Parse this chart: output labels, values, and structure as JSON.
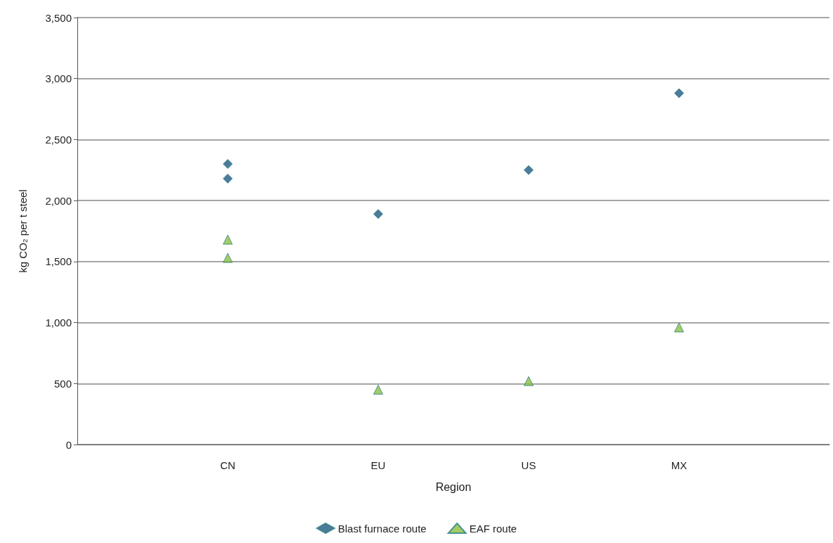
{
  "chart_data": {
    "type": "scatter",
    "xlabel": "Region",
    "ylabel": "kg CO₂ per t steel",
    "categories": [
      null,
      "CN",
      "EU",
      "US",
      "MX",
      null
    ],
    "series": [
      {
        "name": "Blast furnace route",
        "color": "#1f5a82",
        "marker": "diamond",
        "x": [
          "CN",
          "CN",
          "EU",
          "US",
          "MX"
        ],
        "values": [
          2300,
          2180,
          1890,
          2250,
          2880
        ]
      },
      {
        "name": "EAF route",
        "color": "#8dbf3f",
        "marker": "triangle",
        "x": [
          "CN",
          "CN",
          "EU",
          "US",
          "MX"
        ],
        "values": [
          1680,
          1530,
          450,
          520,
          960
        ]
      }
    ],
    "ylim": [
      0,
      3500
    ],
    "yticks": [
      0,
      500,
      {
        "value": 1000,
        "label": "1,000"
      },
      {
        "value": 1500,
        "label": "1,500"
      },
      {
        "value": 2000,
        "label": "2,000"
      },
      {
        "value": 2500,
        "label": "2,500"
      },
      {
        "value": 3000,
        "label": "3,000"
      },
      {
        "value": 3500,
        "label": "3,500"
      }
    ],
    "grid": "y",
    "legend": "bottom"
  }
}
